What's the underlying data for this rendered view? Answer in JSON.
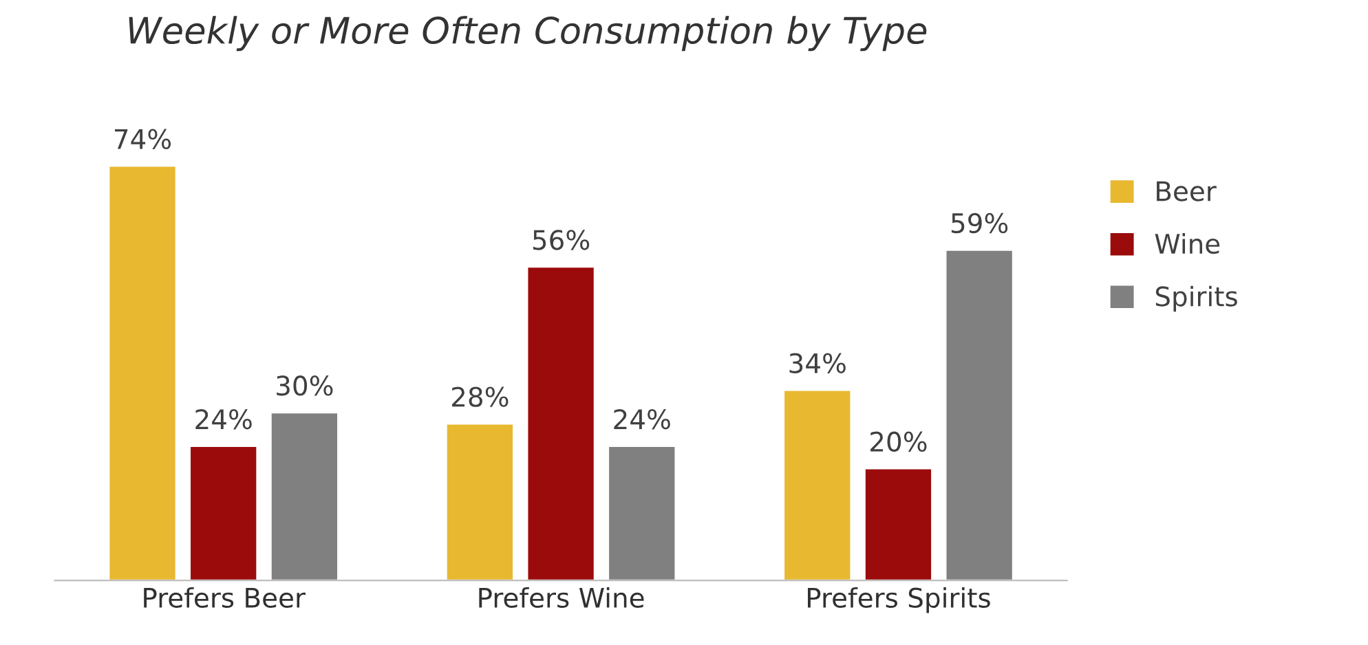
{
  "chart_data": {
    "type": "bar",
    "title": "Weekly or More Often Consumption by Type",
    "categories": [
      "Prefers Beer",
      "Prefers Wine",
      "Prefers Spirits"
    ],
    "series": [
      {
        "name": "Beer",
        "color": "#e8b830",
        "values": [
          74,
          28,
          34
        ],
        "value_labels": [
          "74%",
          "28%",
          "34%"
        ]
      },
      {
        "name": "Wine",
        "color": "#9b0b0b",
        "values": [
          24,
          56,
          20
        ],
        "value_labels": [
          "24%",
          "56%",
          "20%"
        ]
      },
      {
        "name": "Spirits",
        "color": "#808080",
        "values": [
          30,
          24,
          59
        ],
        "value_labels": [
          "30%",
          "24%",
          "59%"
        ]
      }
    ],
    "legend": "right",
    "grid": false
  }
}
